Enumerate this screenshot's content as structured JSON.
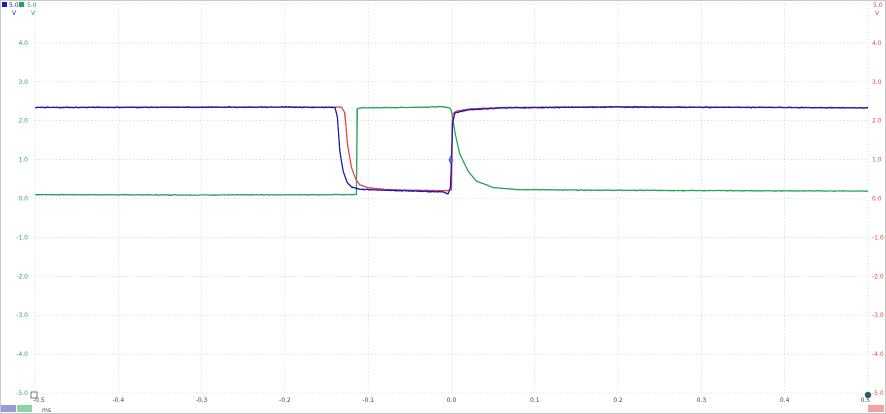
{
  "chart_data": {
    "type": "line",
    "xunit": "ms",
    "xlim": [
      -0.5,
      0.5
    ],
    "ylim": [
      -5.0,
      5.0
    ],
    "grid": true,
    "x_ticks": [
      "-0.5",
      "-0.4",
      "-0.3",
      "-0.2",
      "-0.1",
      "0.0",
      "0.1",
      "0.2",
      "0.3",
      "0.4",
      "0.5"
    ],
    "y_ticks": [
      "5.0",
      "4.0",
      "3.0",
      "2.0",
      "1.0",
      "0.0",
      "-1.0",
      "-2.0",
      "-3.0",
      "-4.0",
      "-5.0"
    ],
    "axes": {
      "blue": {
        "color": "#1a1ab4",
        "unit": "V",
        "top_label": "5.0"
      },
      "green": {
        "color": "#2aa35a",
        "unit": "V",
        "top_label": "5.0"
      },
      "red": {
        "color": "#e0474c",
        "unit": "V",
        "top_label": "5.0"
      }
    },
    "series": [
      {
        "color": "#2aa35a",
        "noise": 0.012,
        "points": [
          [
            -0.5,
            0.1
          ],
          [
            -0.3,
            0.09
          ],
          [
            -0.114,
            0.1
          ],
          [
            -0.1135,
            2.3
          ],
          [
            -0.11,
            2.33
          ],
          [
            -0.06,
            2.34
          ],
          [
            -0.03,
            2.35
          ],
          [
            -0.01,
            2.36
          ],
          [
            -0.002,
            2.33
          ],
          [
            0.0,
            2.25
          ],
          [
            0.005,
            1.6
          ],
          [
            0.01,
            1.15
          ],
          [
            0.02,
            0.7
          ],
          [
            0.03,
            0.45
          ],
          [
            0.05,
            0.28
          ],
          [
            0.08,
            0.23
          ],
          [
            0.2,
            0.21
          ],
          [
            0.35,
            0.2
          ],
          [
            0.5,
            0.19
          ]
        ]
      },
      {
        "color": "#e0474c",
        "noise": 0.01,
        "points": [
          [
            -0.5,
            2.34
          ],
          [
            -0.2,
            2.35
          ],
          [
            -0.132,
            2.35
          ],
          [
            -0.128,
            2.2
          ],
          [
            -0.125,
            1.4
          ],
          [
            -0.12,
            0.8
          ],
          [
            -0.115,
            0.5
          ],
          [
            -0.11,
            0.35
          ],
          [
            -0.1,
            0.28
          ],
          [
            -0.08,
            0.23
          ],
          [
            -0.04,
            0.21
          ],
          [
            -0.005,
            0.2
          ],
          [
            0.0,
            0.22
          ],
          [
            0.001,
            2.15
          ],
          [
            0.005,
            2.24
          ],
          [
            0.02,
            2.3
          ],
          [
            0.06,
            2.34
          ],
          [
            0.2,
            2.36
          ],
          [
            0.4,
            2.34
          ],
          [
            0.5,
            2.33
          ]
        ]
      },
      {
        "color": "#1a1ab4",
        "noise": 0.014,
        "points": [
          [
            -0.5,
            2.34
          ],
          [
            -0.2,
            2.35
          ],
          [
            -0.14,
            2.34
          ],
          [
            -0.137,
            2.1
          ],
          [
            -0.134,
            1.2
          ],
          [
            -0.13,
            0.7
          ],
          [
            -0.125,
            0.4
          ],
          [
            -0.12,
            0.3
          ],
          [
            -0.11,
            0.24
          ],
          [
            -0.08,
            0.21
          ],
          [
            -0.04,
            0.19
          ],
          [
            -0.01,
            0.17
          ],
          [
            -0.004,
            0.12
          ],
          [
            -0.001,
            0.3
          ],
          [
            0.0,
            1.0
          ],
          [
            0.001,
            1.9
          ],
          [
            0.004,
            2.2
          ],
          [
            0.02,
            2.28
          ],
          [
            0.06,
            2.33
          ],
          [
            0.2,
            2.35
          ],
          [
            0.4,
            2.34
          ],
          [
            0.5,
            2.33
          ]
        ]
      }
    ]
  }
}
